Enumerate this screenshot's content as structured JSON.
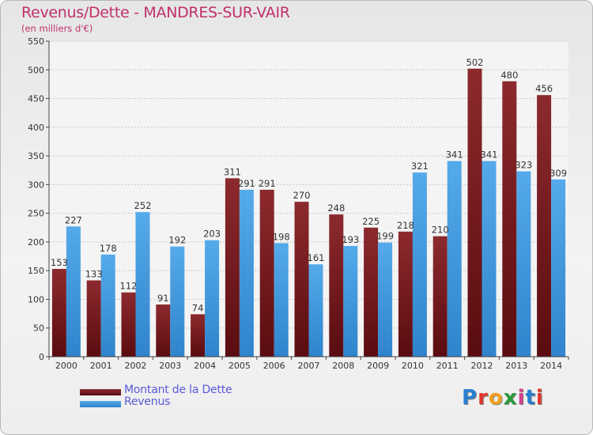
{
  "title": "Revenus/Dette - MANDRES-SUR-VAIR",
  "subtitle": "(en milliers d'€)",
  "logo_text": "Proxiti",
  "colors": {
    "dette": "#7a1e22",
    "revenus": "#4a9ee0",
    "title": "#c0306a",
    "legend_text": "#5a5ad8"
  },
  "chart_data": {
    "type": "bar",
    "title": "Revenus/Dette - MANDRES-SUR-VAIR",
    "subtitle": "(en milliers d'€)",
    "categories": [
      "2000",
      "2001",
      "2002",
      "2003",
      "2004",
      "2005",
      "2006",
      "2007",
      "2008",
      "2009",
      "2010",
      "2011",
      "2012",
      "2013",
      "2014"
    ],
    "series": [
      {
        "name": "Montant de la Dette",
        "values": [
          153,
          133,
          112,
          91,
          74,
          311,
          291,
          270,
          248,
          225,
          218,
          210,
          502,
          480,
          456
        ]
      },
      {
        "name": "Revenus",
        "values": [
          227,
          178,
          252,
          192,
          203,
          291,
          198,
          161,
          193,
          199,
          321,
          341,
          341,
          323,
          309
        ]
      }
    ],
    "ylim": [
      0,
      550
    ],
    "yticks": [
      0,
      50,
      100,
      150,
      200,
      250,
      300,
      350,
      400,
      450,
      500,
      550
    ],
    "grid": true,
    "legend": "bottom-left"
  }
}
